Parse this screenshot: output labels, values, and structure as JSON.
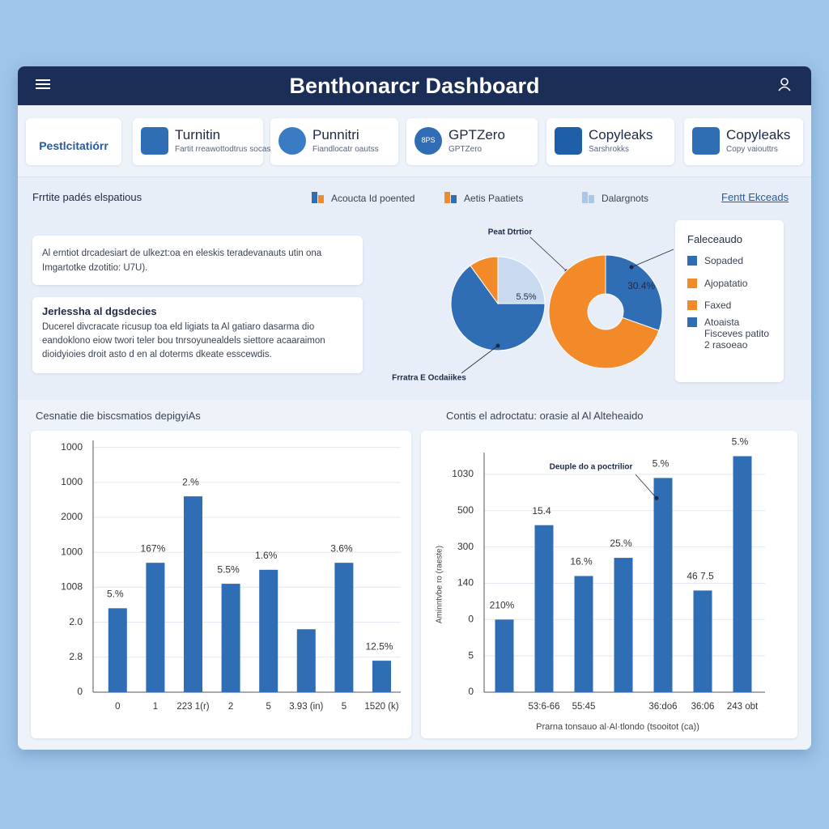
{
  "header": {
    "title": "Benthonarcr Dashboard"
  },
  "tools": [
    {
      "name": "Pestlcitatiórr"
    },
    {
      "name": "Turnitin",
      "sub": "Fartit rreawottodtrus socas"
    },
    {
      "name": "Punnitri",
      "sub": "Fiandlocatr oautss"
    },
    {
      "name": "GPTZero",
      "sub": "GPTZero",
      "badge": "8PS"
    },
    {
      "name": "Copyleaks",
      "sub": "Sarshrokks"
    },
    {
      "name": "Copyleaks",
      "sub": "Copy vaiouttrs"
    }
  ],
  "section": {
    "title": "Frrtite padés elspatious",
    "legend": [
      "Acoucta Id poented",
      "Aetis Paatiets",
      "Dalargnots"
    ],
    "link": "Fentt Ekceads"
  },
  "cards": [
    {
      "text": "Al erntiot drcadesiart de ulkezt:oa en eleskis teradevanauts utin ona Imgartotke dzotitio: U7U)."
    },
    {
      "title": "Jerlessha al dgsdecies",
      "text": "Ducerel divcracate ricusup toa eld ligiats ta Al gatiaro dasarma dio eandoklono eiow twori teler bou tnrsoyunealdels siettore acaaraimon dioidyioies droit asto d en al doterms dkeate esscewdis."
    }
  ],
  "pies": [
    {
      "type": "pie",
      "values": [
        25,
        65,
        10
      ],
      "colors": [
        "#c9daf0",
        "#2f6db5",
        "#f28a2a"
      ],
      "annotations": [
        "Peat Dtrtior",
        "5.5%",
        "Frratra E Ocdaiikes"
      ]
    },
    {
      "type": "donut",
      "values": [
        30.4,
        69.6
      ],
      "colors": [
        "#2f6db5",
        "#f28a2a"
      ],
      "value_labels": [
        "30.4%",
        null
      ]
    }
  ],
  "pie_legend": {
    "title": "Faleceaudo",
    "items": [
      {
        "text": "Sopaded",
        "color": "#2f6db5"
      },
      {
        "text": "Ajopatatio",
        "color": "#f28a2a"
      },
      {
        "text": "Faxed",
        "color": "#f28a2a"
      },
      {
        "text": "Atoaista\nFisceves patito\n2 rasoeao",
        "color": "#2f6db5"
      }
    ]
  },
  "bar_charts": [
    {
      "type": "bar",
      "title": "Cesnatie die biscsmatios depigyiAs",
      "categories": [
        "0",
        "1",
        "223 1(r)",
        "2",
        "5",
        "3.93 (in)",
        "5",
        "1520 (k)"
      ],
      "values": [
        2.4,
        3.7,
        5.6,
        3.1,
        3.5,
        1.8,
        3.7,
        0.9
      ],
      "bar_notes": [
        "5.%",
        "167%",
        "2.%",
        "5.5%",
        "1.6%",
        null,
        "3.6%",
        "12.5%"
      ],
      "color": "#2f6db5",
      "grid": true,
      "ylim": [
        0,
        7.2
      ],
      "yticks": [
        {
          "value": 0,
          "label": "0"
        },
        {
          "value": 1,
          "label": "2.8"
        },
        {
          "value": 2,
          "label": "2.0"
        },
        {
          "value": 3,
          "label": "1008"
        },
        {
          "value": 4,
          "label": "1000"
        },
        {
          "value": 5,
          "label": "2000"
        },
        {
          "value": 6,
          "label": "1000"
        },
        {
          "value": 7,
          "label": "1000"
        }
      ]
    },
    {
      "type": "bar",
      "title": "Contis el adroctatu: orasie al Al Alteheaido",
      "categories": [
        null,
        "53:6-66",
        "55:45",
        null,
        "36:do6",
        "36:06",
        "243 obt"
      ],
      "values": [
        2.0,
        4.6,
        3.2,
        3.7,
        5.9,
        2.8,
        6.5
      ],
      "bar_notes": [
        "210%",
        "15.4",
        "16.%",
        "25.%",
        "5.%",
        "46 7.5",
        "5.%"
      ],
      "callout": "Deuple do a poctrilior",
      "y_label": "Aminntvbe ro (raeste)",
      "x_label": "Prarna tonsauo al·Al·tlondo (tsooitot (ca))",
      "color": "#2f6db5",
      "grid": true,
      "ylim": [
        0,
        6.6
      ],
      "yticks": [
        {
          "value": 0,
          "label": "0"
        },
        {
          "value": 1,
          "label": "5"
        },
        {
          "value": 2,
          "label": "0"
        },
        {
          "value": 3,
          "label": "140"
        },
        {
          "value": 4,
          "label": "300"
        },
        {
          "value": 5,
          "label": "500"
        },
        {
          "value": 6,
          "label": "1030"
        }
      ]
    }
  ]
}
